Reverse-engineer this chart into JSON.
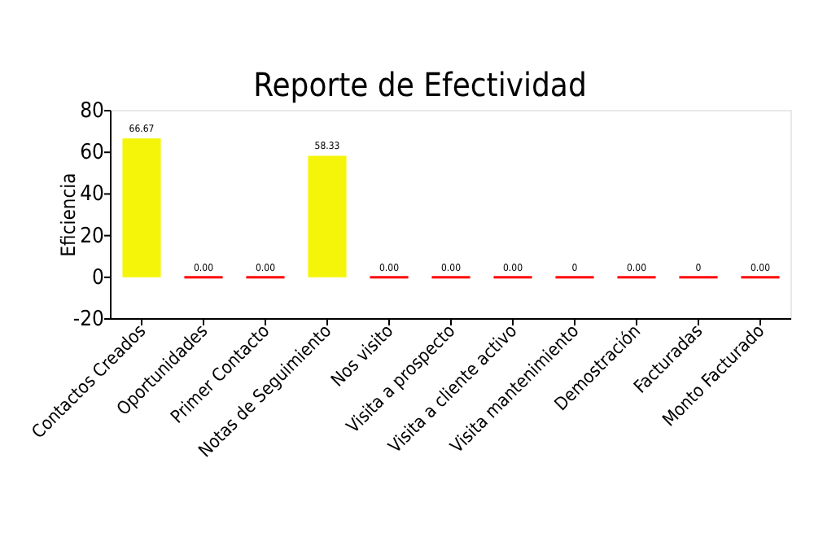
{
  "chart_data": {
    "type": "bar",
    "title": "Reporte de Efectividad",
    "ylabel": "Eficiencia",
    "categories": [
      "Contactos Creados",
      "Oportunidades",
      "Primer Contacto",
      "Notas de Seguimiento",
      "Nos visito",
      "Visita a prospecto",
      "Visita a cliente activo",
      "Visita mantenimiento",
      "Demostración",
      "Facturadas",
      "Monto Facturado"
    ],
    "values": [
      66.67,
      0,
      0,
      58.33,
      0,
      0,
      0,
      0,
      0,
      0,
      0
    ],
    "colors": [
      "#f5f50a",
      "#ff0000",
      "#ff0000",
      "#f5f50a",
      "#ff0000",
      "#ff0000",
      "#ff0000",
      "#ff0000",
      "#ff0000",
      "#ff0000",
      "#ff0000"
    ],
    "value_labels": [
      "66.67",
      "0.00",
      "0.00",
      "58.33",
      "0.00",
      "0.00",
      "0.00",
      "0",
      "0.00",
      "0",
      "0.00"
    ],
    "ylim": [
      -20,
      80
    ],
    "yticks": [
      -20,
      0,
      20,
      40,
      60,
      80
    ],
    "grid": false
  }
}
